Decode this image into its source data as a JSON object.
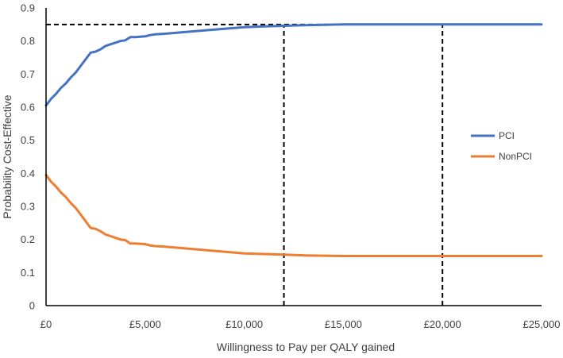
{
  "chart_data": {
    "type": "line",
    "title": "",
    "xlabel": "Willingness to Pay per QALY gained",
    "ylabel": "Probability Cost-Effective",
    "xlim": [
      0,
      25000
    ],
    "ylim": [
      0,
      0.9
    ],
    "x_ticks": [
      0,
      5000,
      10000,
      15000,
      20000,
      25000
    ],
    "x_tick_labels": [
      "£0",
      "£5,000",
      "£10,000",
      "£15,000",
      "£20,000",
      "£25,000"
    ],
    "y_ticks": [
      0,
      0.1,
      0.2,
      0.3,
      0.4,
      0.5,
      0.6,
      0.7,
      0.8,
      0.9
    ],
    "y_tick_labels": [
      "0",
      "0.1",
      "0.2",
      "0.3",
      "0.4",
      "0.5",
      "0.6",
      "0.7",
      "0.8",
      "0.9"
    ],
    "grid": false,
    "legend_position": "right",
    "series": [
      {
        "name": "PCI",
        "color": "#4472C4",
        "x": [
          0,
          250,
          500,
          750,
          1000,
          1250,
          1500,
          1750,
          2000,
          2250,
          2500,
          2750,
          3000,
          3250,
          3500,
          3750,
          4000,
          4250,
          4500,
          4750,
          5000,
          5250,
          5500,
          6000,
          7000,
          8000,
          9000,
          10000,
          11000,
          12000,
          13000,
          14000,
          15000,
          16000,
          18000,
          20000,
          25000
        ],
        "values": [
          0.605,
          0.625,
          0.64,
          0.658,
          0.672,
          0.69,
          0.705,
          0.725,
          0.745,
          0.765,
          0.768,
          0.775,
          0.785,
          0.79,
          0.795,
          0.8,
          0.802,
          0.812,
          0.812,
          0.813,
          0.814,
          0.818,
          0.82,
          0.822,
          0.827,
          0.832,
          0.837,
          0.842,
          0.844,
          0.846,
          0.848,
          0.849,
          0.85,
          0.85,
          0.85,
          0.85,
          0.85
        ]
      },
      {
        "name": "NonPCI",
        "color": "#ED7D31",
        "x": [
          0,
          250,
          500,
          750,
          1000,
          1250,
          1500,
          1750,
          2000,
          2250,
          2500,
          2750,
          3000,
          3250,
          3500,
          3750,
          4000,
          4250,
          4500,
          4750,
          5000,
          5250,
          5500,
          6000,
          7000,
          8000,
          9000,
          10000,
          11000,
          12000,
          13000,
          14000,
          15000,
          16000,
          18000,
          20000,
          25000
        ],
        "values": [
          0.395,
          0.375,
          0.36,
          0.342,
          0.328,
          0.31,
          0.295,
          0.275,
          0.255,
          0.235,
          0.232,
          0.225,
          0.215,
          0.21,
          0.205,
          0.2,
          0.198,
          0.188,
          0.188,
          0.187,
          0.186,
          0.182,
          0.18,
          0.178,
          0.173,
          0.168,
          0.163,
          0.158,
          0.156,
          0.154,
          0.152,
          0.151,
          0.15,
          0.15,
          0.15,
          0.15,
          0.15
        ]
      }
    ],
    "reference_lines": [
      {
        "orientation": "horizontal",
        "y": 0.85,
        "x_from": 0,
        "x_to": 20000,
        "style": "dashed",
        "color": "#000000"
      },
      {
        "orientation": "vertical",
        "x": 12000,
        "y_from": 0,
        "y_to": 0.85,
        "style": "dashed",
        "color": "#000000"
      },
      {
        "orientation": "vertical",
        "x": 20000,
        "y_from": 0,
        "y_to": 0.85,
        "style": "dashed",
        "color": "#000000"
      }
    ]
  }
}
